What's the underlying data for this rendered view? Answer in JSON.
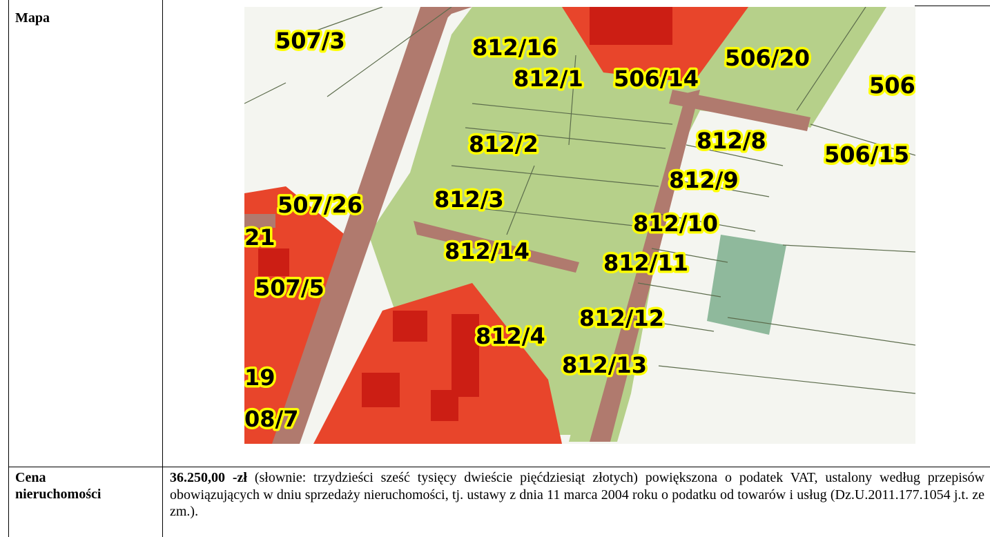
{
  "rows": {
    "map": {
      "label": "Mapa"
    },
    "price": {
      "label_line1": "Cena",
      "label_line2": "nieruchomości",
      "amount": "36.250,00 -zł",
      "text_part1": " (słownie: trzydzieści sześć tysięcy dwieście pięćdziesiąt złotych) powiększona o podatek VAT, ustalony według przepisów obowiązujących w dniu sprzedaży nieruchomości, tj. ustawy z dnia 11 marca 2004 roku o podatku od towarów i usług (Dz.U.2011.177.1054 j.t. ze zm.)."
    }
  },
  "map_labels": [
    "507/3",
    "812/16",
    "506/20",
    "812/1",
    "506/14",
    "506",
    "812/2",
    "812/8",
    "506/15",
    "812/9",
    "507/26",
    "812/3",
    "812/10",
    "21",
    "812/14",
    "812/11",
    "507/5",
    "812/12",
    "812/4",
    "812/13",
    "19",
    "08/7"
  ],
  "colors": {
    "developed_red": "#e8452b",
    "building_dark_red": "#cc1e14",
    "parcel_green": "#b6d08a",
    "road_brown": "#b07a6e",
    "teal_area": "#8fb99c",
    "label_yellow": "#ffff00"
  }
}
